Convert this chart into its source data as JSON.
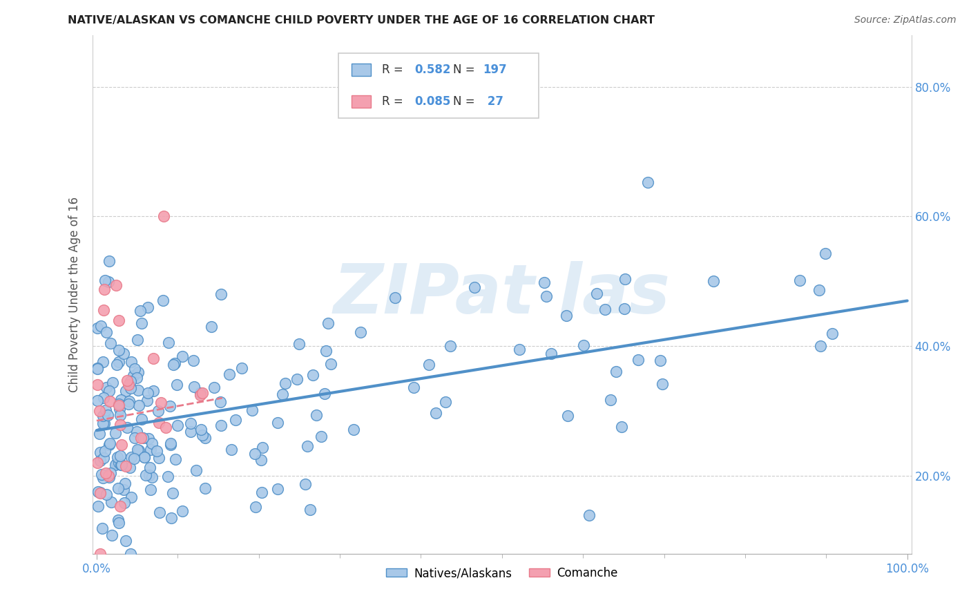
{
  "title": "NATIVE/ALASKAN VS COMANCHE CHILD POVERTY UNDER THE AGE OF 16 CORRELATION CHART",
  "source": "Source: ZipAtlas.com",
  "ylabel": "Child Poverty Under the Age of 16",
  "xlim": [
    -0.005,
    1.005
  ],
  "ylim": [
    0.08,
    0.88
  ],
  "xtick_major": [
    0.0,
    1.0
  ],
  "xticklabels_major": [
    "0.0%",
    "100.0%"
  ],
  "xtick_minor": [
    0.1,
    0.2,
    0.3,
    0.4,
    0.5,
    0.6,
    0.7,
    0.8,
    0.9
  ],
  "yticks": [
    0.2,
    0.4,
    0.6,
    0.8
  ],
  "yticklabels": [
    "20.0%",
    "40.0%",
    "60.0%",
    "80.0%"
  ],
  "color_blue": "#a8c8e8",
  "color_pink": "#f4a0b0",
  "line_color_blue": "#5090c8",
  "line_color_pink": "#e87a8a",
  "watermark": "ZIPat las",
  "watermark_color": "#c8ddf0",
  "blue_r": "0.582",
  "blue_n": "197",
  "pink_r": "0.085",
  "pink_n": " 27",
  "blue_trend_x0": 0.0,
  "blue_trend_x1": 1.0,
  "blue_trend_y0": 0.27,
  "blue_trend_y1": 0.47,
  "pink_trend_x0": 0.0,
  "pink_trend_x1": 0.155,
  "pink_trend_y0": 0.285,
  "pink_trend_y1": 0.32,
  "accent_color": "#4a90d9"
}
